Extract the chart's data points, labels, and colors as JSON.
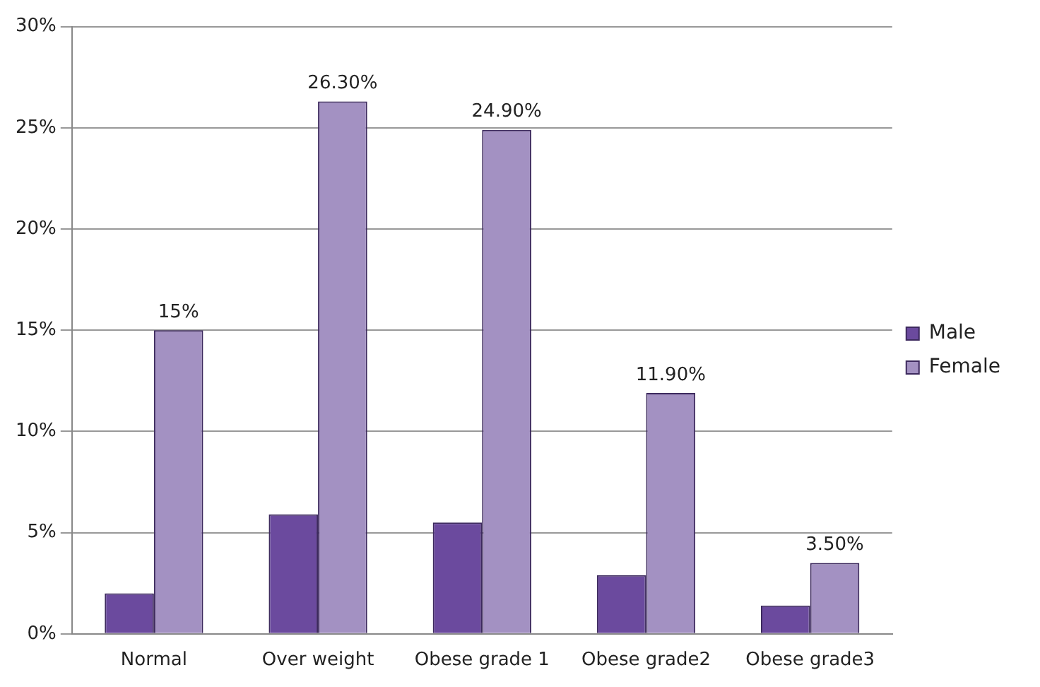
{
  "chart_data": {
    "type": "bar",
    "categories": [
      "Normal",
      "Over weight",
      "Obese grade 1",
      "Obese grade2",
      "Obese grade3"
    ],
    "series": [
      {
        "name": "Male",
        "color": "#6b4a9e",
        "values": [
          2,
          5.9,
          5.5,
          2.9,
          1.4
        ]
      },
      {
        "name": "Female",
        "color": "#a391c2",
        "values": [
          15,
          26.3,
          24.9,
          11.9,
          3.5
        ],
        "value_labels": [
          "15%",
          "26.30%",
          "24.90%",
          "11.90%",
          "3.50%"
        ]
      }
    ],
    "ylim": [
      0,
      30
    ],
    "yticks": [
      {
        "value": 0,
        "label": "0%"
      },
      {
        "value": 5,
        "label": "5%"
      },
      {
        "value": 10,
        "label": "10%"
      },
      {
        "value": 15,
        "label": "15%"
      },
      {
        "value": 20,
        "label": "20%"
      },
      {
        "value": 25,
        "label": "25%"
      },
      {
        "value": 30,
        "label": "30%"
      }
    ],
    "grid": "y",
    "legend": "right"
  }
}
